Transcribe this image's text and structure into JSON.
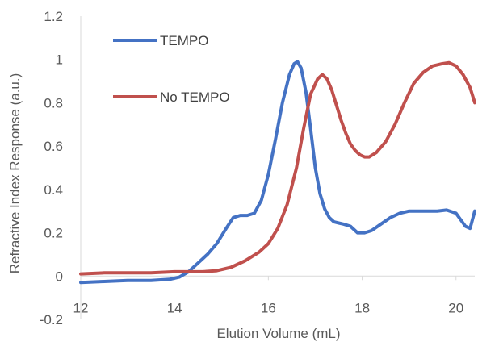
{
  "chart_data": {
    "type": "line",
    "title": "",
    "xlabel": "Elution Volume (mL)",
    "ylabel": "Refractive Index Response (a.u.)",
    "xlim": [
      12,
      20.4
    ],
    "ylim": [
      -0.2,
      1.2
    ],
    "xticks": [
      12,
      14,
      16,
      18,
      20
    ],
    "xtick_labels": [
      "12",
      "14",
      "16",
      "18",
      "20"
    ],
    "yticks": [
      -0.2,
      0,
      0.2,
      0.4,
      0.6,
      0.8,
      1,
      1.2
    ],
    "ytick_labels": [
      "-0.2",
      "0",
      "0.2",
      "0.4",
      "0.6",
      "0.8",
      "1",
      "1.2"
    ],
    "grid": false,
    "legend": "top-left",
    "series": [
      {
        "name": "TEMPO",
        "color": "#4472C4",
        "x": [
          12.0,
          12.5,
          13.0,
          13.5,
          13.9,
          14.1,
          14.3,
          14.5,
          14.7,
          14.9,
          15.1,
          15.25,
          15.4,
          15.55,
          15.7,
          15.85,
          16.0,
          16.15,
          16.3,
          16.45,
          16.55,
          16.62,
          16.7,
          16.8,
          16.9,
          17.0,
          17.1,
          17.2,
          17.3,
          17.4,
          17.5,
          17.6,
          17.75,
          17.9,
          18.05,
          18.2,
          18.4,
          18.6,
          18.8,
          19.0,
          19.2,
          19.4,
          19.6,
          19.8,
          20.0,
          20.1,
          20.2,
          20.3,
          20.4
        ],
        "y": [
          -0.03,
          -0.025,
          -0.02,
          -0.02,
          -0.015,
          -0.005,
          0.02,
          0.06,
          0.1,
          0.15,
          0.22,
          0.27,
          0.28,
          0.28,
          0.29,
          0.35,
          0.47,
          0.63,
          0.8,
          0.93,
          0.98,
          0.99,
          0.96,
          0.85,
          0.68,
          0.5,
          0.38,
          0.31,
          0.27,
          0.25,
          0.245,
          0.24,
          0.23,
          0.2,
          0.2,
          0.21,
          0.24,
          0.27,
          0.29,
          0.3,
          0.3,
          0.3,
          0.3,
          0.305,
          0.29,
          0.26,
          0.23,
          0.22,
          0.3
        ]
      },
      {
        "name": "No TEMPO",
        "color": "#C0504D",
        "x": [
          12.0,
          12.5,
          13.0,
          13.5,
          14.0,
          14.3,
          14.6,
          14.9,
          15.2,
          15.5,
          15.8,
          16.0,
          16.2,
          16.4,
          16.6,
          16.75,
          16.9,
          17.05,
          17.15,
          17.25,
          17.35,
          17.45,
          17.55,
          17.65,
          17.75,
          17.85,
          17.95,
          18.05,
          18.15,
          18.3,
          18.5,
          18.7,
          18.9,
          19.1,
          19.3,
          19.5,
          19.7,
          19.85,
          20.0,
          20.15,
          20.3,
          20.4
        ],
        "y": [
          0.01,
          0.015,
          0.015,
          0.015,
          0.02,
          0.02,
          0.02,
          0.025,
          0.04,
          0.07,
          0.11,
          0.15,
          0.22,
          0.33,
          0.5,
          0.68,
          0.84,
          0.91,
          0.93,
          0.91,
          0.86,
          0.79,
          0.72,
          0.66,
          0.61,
          0.58,
          0.56,
          0.55,
          0.55,
          0.57,
          0.62,
          0.7,
          0.8,
          0.89,
          0.94,
          0.97,
          0.98,
          0.985,
          0.97,
          0.93,
          0.87,
          0.8
        ]
      }
    ]
  }
}
